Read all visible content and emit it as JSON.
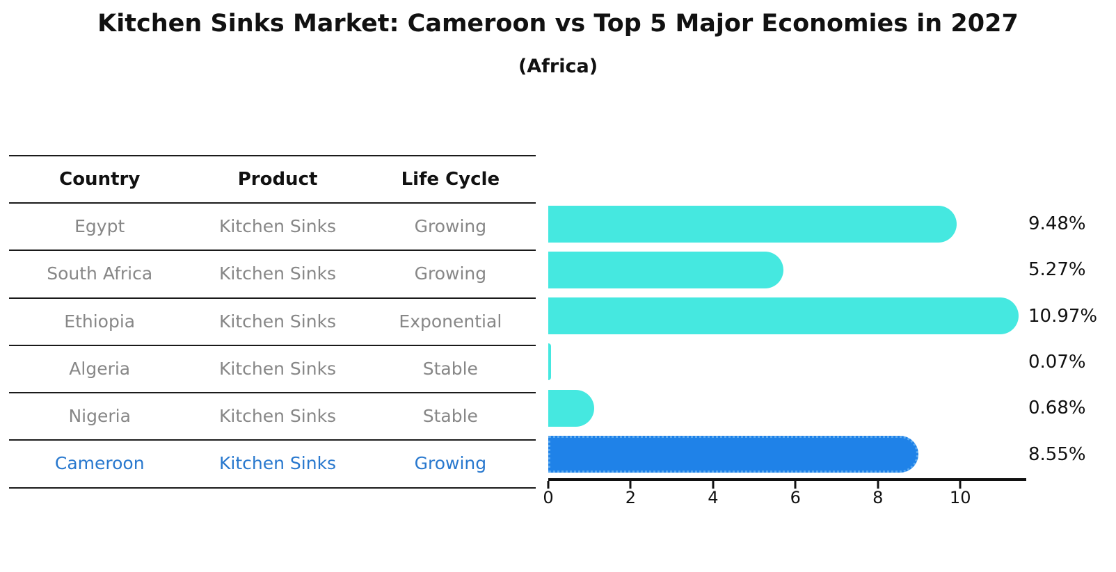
{
  "title": "Kitchen Sinks Market: Cameroon vs Top 5 Major Economies in 2027",
  "subtitle": "(Africa)",
  "colors": {
    "bar_default": "#45e8e0",
    "bar_highlight": "#1f82e8",
    "bar_highlight_border": "#5aa9f0",
    "highlight_text": "#2878ce",
    "row_text": "#878787",
    "header_text": "#111111",
    "axis": "#111111"
  },
  "table": {
    "headers": [
      "Country",
      "Product",
      "Life Cycle"
    ],
    "rows": [
      {
        "country": "Egypt",
        "product": "Kitchen Sinks",
        "life_cycle": "Growing",
        "highlighted": false
      },
      {
        "country": "South Africa",
        "product": "Kitchen Sinks",
        "life_cycle": "Growing",
        "highlighted": false
      },
      {
        "country": "Ethiopia",
        "product": "Kitchen Sinks",
        "life_cycle": "Exponential",
        "highlighted": false
      },
      {
        "country": "Algeria",
        "product": "Kitchen Sinks",
        "life_cycle": "Stable",
        "highlighted": false
      },
      {
        "country": "Nigeria",
        "product": "Kitchen Sinks",
        "life_cycle": "Stable",
        "highlighted": false
      },
      {
        "country": "Cameroon",
        "product": "Kitchen Sinks",
        "life_cycle": "Growing",
        "highlighted": true
      }
    ]
  },
  "chart_data": {
    "type": "bar",
    "orientation": "horizontal",
    "title": "Kitchen Sinks Market: Cameroon vs Top 5 Major Economies in 2027",
    "subtitle": "(Africa)",
    "categories": [
      "Egypt",
      "South Africa",
      "Ethiopia",
      "Algeria",
      "Nigeria",
      "Cameroon"
    ],
    "values": [
      9.48,
      5.27,
      10.97,
      0.07,
      0.68,
      8.55
    ],
    "labels": [
      "9.48%",
      "5.27%",
      "10.97%",
      "0.07%",
      "0.68%",
      "8.55%"
    ],
    "highlight_index": 5,
    "xlabel": "",
    "ylabel": "",
    "xlim": [
      0,
      11.55
    ],
    "xticks": [
      0,
      2,
      4,
      6,
      8,
      10
    ],
    "grid": false,
    "legend": false
  }
}
